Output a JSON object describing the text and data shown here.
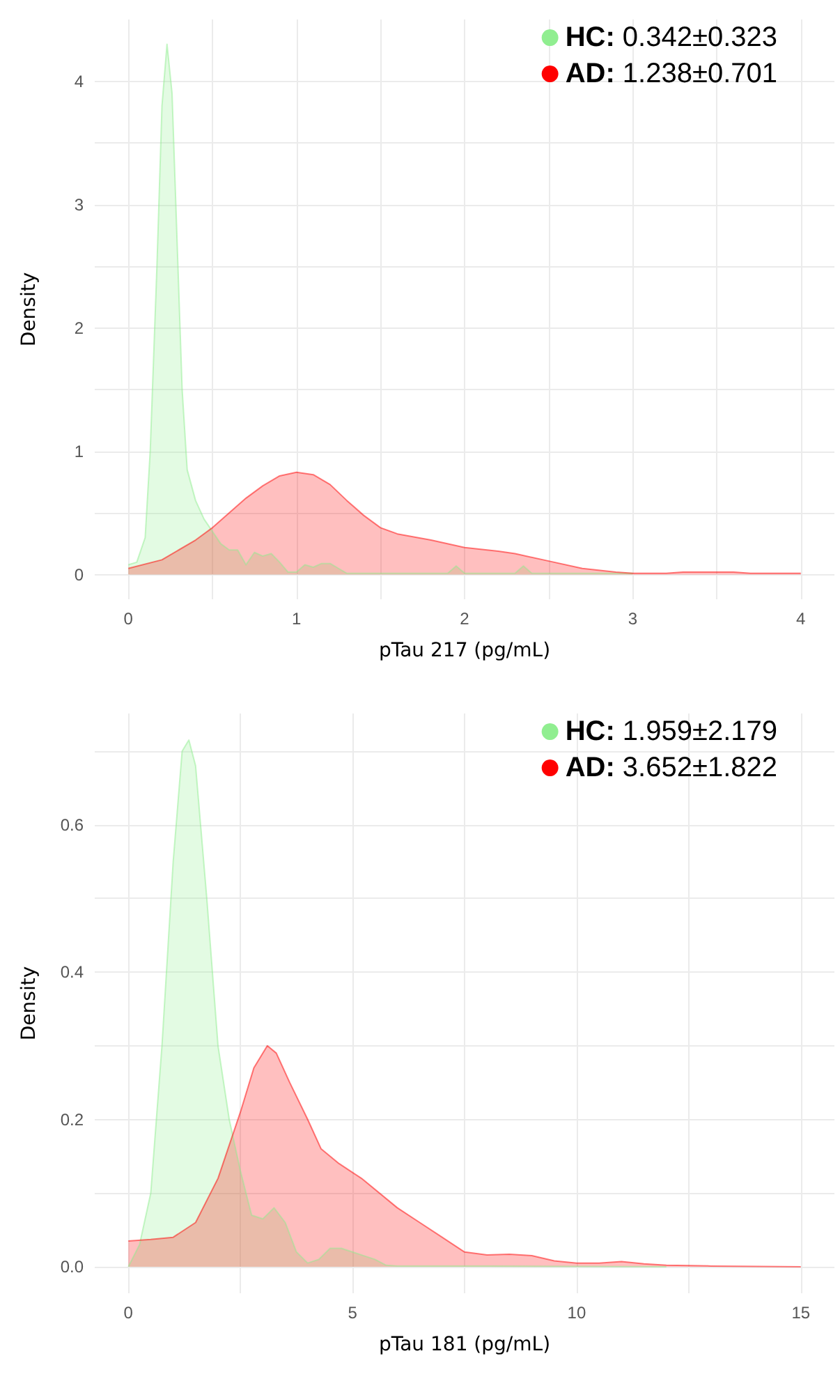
{
  "chart_data": [
    {
      "type": "area",
      "xlabel": "pTau 217 (pg/mL)",
      "ylabel": "Density",
      "xlim": [
        -0.2,
        4.2
      ],
      "ylim": [
        -0.2,
        4.5
      ],
      "xticks": [
        0,
        {
          "value": 0.5,
          "label": null
        },
        1,
        {
          "value": 1.5,
          "label": null
        },
        2,
        {
          "value": 2.5,
          "label": null
        },
        3,
        {
          "value": 3.5,
          "label": null
        },
        4
      ],
      "yticks": [
        0,
        {
          "value": 0.5,
          "label": null
        },
        1,
        {
          "value": 1.5,
          "label": null
        },
        2,
        {
          "value": 2.5,
          "label": null
        },
        3,
        {
          "value": 3.5,
          "label": null
        },
        4
      ],
      "grid": true,
      "legend": "top right",
      "marker": "none",
      "series": [
        {
          "name": "HC: 0.342±0.323",
          "color": "#90ee90",
          "x": [
            0,
            0.05,
            0.1,
            0.13,
            0.17,
            0.2,
            0.23,
            0.26,
            0.29,
            0.32,
            0.35,
            0.4,
            0.45,
            0.5,
            0.55,
            0.6,
            0.65,
            0.7,
            0.75,
            0.8,
            0.85,
            0.9,
            0.95,
            1.0,
            1.05,
            1.1,
            1.15,
            1.2,
            1.25,
            1.3,
            1.5,
            1.9,
            1.95,
            2.0,
            2.3,
            2.35,
            2.4,
            2.6,
            3.0
          ],
          "values": [
            0.08,
            0.1,
            0.3,
            1.0,
            2.5,
            3.8,
            4.3,
            3.9,
            2.7,
            1.5,
            0.85,
            0.6,
            0.45,
            0.35,
            0.25,
            0.2,
            0.2,
            0.08,
            0.18,
            0.15,
            0.17,
            0.1,
            0.02,
            0.02,
            0.08,
            0.06,
            0.09,
            0.09,
            0.05,
            0.01,
            0.01,
            0.01,
            0.07,
            0.01,
            0.01,
            0.07,
            0.01,
            0.01,
            0.01
          ]
        },
        {
          "name": "AD: 1.238±0.701",
          "color": "#ff0000",
          "x": [
            0,
            0.2,
            0.4,
            0.5,
            0.6,
            0.7,
            0.8,
            0.9,
            1.0,
            1.1,
            1.2,
            1.3,
            1.4,
            1.5,
            1.6,
            1.8,
            2.0,
            2.2,
            2.3,
            2.5,
            2.7,
            2.9,
            3.0,
            3.2,
            3.3,
            3.6,
            3.7,
            4.0
          ],
          "values": [
            0.05,
            0.12,
            0.28,
            0.38,
            0.5,
            0.62,
            0.72,
            0.8,
            0.83,
            0.81,
            0.73,
            0.6,
            0.48,
            0.38,
            0.33,
            0.28,
            0.22,
            0.19,
            0.17,
            0.11,
            0.05,
            0.02,
            0.01,
            0.01,
            0.02,
            0.02,
            0.01,
            0.01
          ]
        }
      ]
    },
    {
      "type": "area",
      "xlabel": "pTau 181 (pg/mL)",
      "ylabel": "Density",
      "xlim": [
        -0.75,
        15.75
      ],
      "ylim": [
        -0.036,
        0.751
      ],
      "xticks": [
        0,
        {
          "value": 2.5,
          "label": null
        },
        5,
        {
          "value": 7.5,
          "label": null
        },
        10,
        {
          "value": 12.5,
          "label": null
        },
        15
      ],
      "yticks": [
        {
          "value": 0,
          "label": "0.0"
        },
        {
          "value": 0.1,
          "label": null
        },
        0.2,
        {
          "value": 0.3,
          "label": null
        },
        0.4,
        {
          "value": 0.5,
          "label": null
        },
        0.6,
        {
          "value": 0.7,
          "label": null
        }
      ],
      "grid": true,
      "legend": "top right",
      "marker": "none",
      "series": [
        {
          "name": "HC: 1.959±2.179",
          "color": "#90ee90",
          "x": [
            0,
            0.25,
            0.5,
            0.75,
            1.0,
            1.2,
            1.35,
            1.5,
            1.75,
            2.0,
            2.25,
            2.5,
            2.75,
            3.0,
            3.25,
            3.5,
            3.75,
            4.0,
            4.25,
            4.5,
            4.75,
            5.0,
            5.25,
            5.5,
            5.75,
            6,
            8,
            12
          ],
          "values": [
            0,
            0.03,
            0.1,
            0.3,
            0.55,
            0.7,
            0.715,
            0.68,
            0.5,
            0.3,
            0.2,
            0.13,
            0.07,
            0.065,
            0.08,
            0.06,
            0.02,
            0.005,
            0.01,
            0.025,
            0.025,
            0.02,
            0.015,
            0.01,
            0.002,
            0.001,
            0.001,
            0
          ]
        },
        {
          "name": "AD: 3.652±1.822",
          "color": "#ff0000",
          "x": [
            0,
            0.5,
            1.0,
            1.5,
            2.0,
            2.5,
            2.8,
            3.1,
            3.3,
            3.6,
            4.0,
            4.3,
            4.7,
            5.2,
            6.0,
            6.5,
            7.0,
            7.5,
            8.0,
            8.5,
            9.0,
            9.5,
            10,
            10.5,
            11,
            11.5,
            12,
            13,
            15
          ],
          "values": [
            0.035,
            0.037,
            0.04,
            0.06,
            0.12,
            0.21,
            0.27,
            0.3,
            0.29,
            0.25,
            0.2,
            0.16,
            0.14,
            0.12,
            0.08,
            0.06,
            0.04,
            0.02,
            0.016,
            0.017,
            0.015,
            0.008,
            0.005,
            0.005,
            0.007,
            0.004,
            0.002,
            0.001,
            0
          ]
        }
      ]
    }
  ]
}
